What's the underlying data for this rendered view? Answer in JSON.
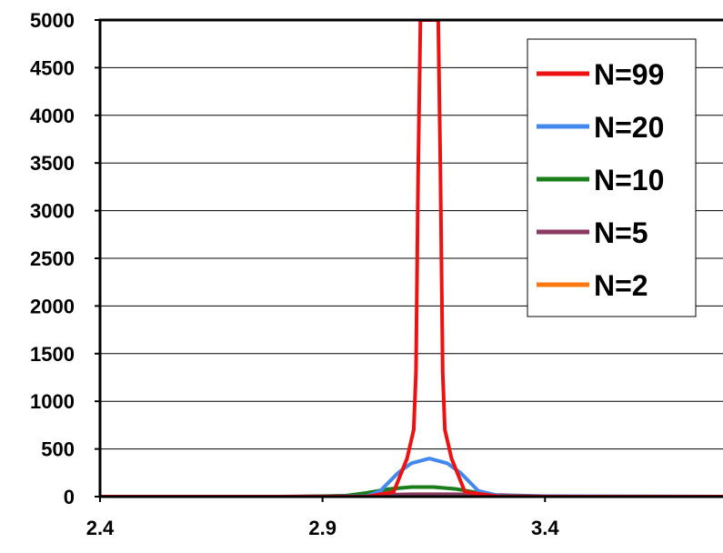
{
  "chart_data": {
    "type": "line",
    "title": "",
    "xlabel": "",
    "ylabel": "",
    "xlim": [
      2.4,
      3.8
    ],
    "ylim": [
      0,
      5000
    ],
    "x_ticks": [
      2.4,
      2.9,
      3.4
    ],
    "x_tick_labels": [
      "2.4",
      "2.9",
      "3.4"
    ],
    "y_ticks": [
      0,
      500,
      1000,
      1500,
      2000,
      2500,
      3000,
      3500,
      4000,
      4500,
      5000
    ],
    "y_tick_labels": [
      "0",
      "500",
      "1000",
      "1500",
      "2000",
      "2500",
      "3000",
      "3500",
      "4000",
      "4500",
      "5000"
    ],
    "grid": "horizontal",
    "legend_position": "top-right",
    "series": [
      {
        "name": "N=99",
        "color": "#ee1111",
        "x": [
          2.4,
          2.8,
          3.0,
          3.06,
          3.09,
          3.105,
          3.11,
          3.115,
          3.12,
          3.13,
          3.15,
          3.16,
          3.165,
          3.17,
          3.175,
          3.19,
          3.22,
          3.3,
          3.5,
          3.8
        ],
        "values": [
          0,
          0,
          0,
          50,
          400,
          700,
          1300,
          3400,
          5000,
          5000,
          5000,
          5000,
          3400,
          1300,
          700,
          400,
          50,
          0,
          0,
          0
        ]
      },
      {
        "name": "N=20",
        "color": "#4488ee",
        "x": [
          2.4,
          2.9,
          3.0,
          3.03,
          3.07,
          3.1,
          3.14,
          3.18,
          3.21,
          3.25,
          3.3,
          3.8
        ],
        "values": [
          0,
          0,
          5,
          60,
          250,
          350,
          400,
          350,
          250,
          60,
          5,
          0
        ]
      },
      {
        "name": "N=10",
        "color": "#1a7f1a",
        "x": [
          2.4,
          2.85,
          2.95,
          3.0,
          3.05,
          3.1,
          3.15,
          3.2,
          3.25,
          3.3,
          3.4,
          3.8
        ],
        "values": [
          0,
          0,
          8,
          40,
          80,
          100,
          100,
          80,
          40,
          8,
          0,
          0
        ]
      },
      {
        "name": "N=5",
        "color": "#8b3a62",
        "x": [
          2.4,
          2.8,
          2.9,
          3.0,
          3.1,
          3.2,
          3.3,
          3.4,
          3.5,
          3.8
        ],
        "values": [
          0,
          0,
          5,
          15,
          25,
          25,
          15,
          5,
          0,
          0
        ]
      },
      {
        "name": "N=2",
        "color": "#ff7711",
        "x": [
          2.4,
          2.9,
          3.1,
          3.3,
          3.8
        ],
        "values": [
          0,
          0,
          2,
          0,
          0
        ]
      }
    ]
  }
}
